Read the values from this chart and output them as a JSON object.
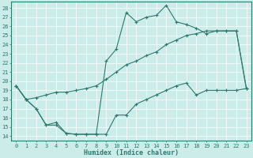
{
  "xlabel": "Humidex (Indice chaleur)",
  "bg_color": "#ccecea",
  "line_color": "#2d7a6e",
  "grid_color": "#ffffff",
  "xlim": [
    -0.5,
    23.5
  ],
  "ylim": [
    13.5,
    28.7
  ],
  "yticks": [
    14,
    15,
    16,
    17,
    18,
    19,
    20,
    21,
    22,
    23,
    24,
    25,
    26,
    27,
    28
  ],
  "xticks": [
    0,
    1,
    2,
    3,
    4,
    5,
    6,
    7,
    8,
    9,
    10,
    11,
    12,
    13,
    14,
    15,
    16,
    17,
    18,
    19,
    20,
    21,
    22,
    23
  ],
  "line1_x": [
    0,
    1,
    2,
    3,
    4,
    5,
    6,
    7,
    8,
    9,
    10,
    11,
    12,
    13,
    14,
    15,
    16,
    17,
    18,
    19,
    20,
    21,
    22,
    23
  ],
  "line1_y": [
    19.5,
    18.0,
    17.0,
    15.2,
    15.2,
    14.3,
    14.2,
    14.2,
    14.2,
    14.2,
    16.3,
    16.3,
    17.5,
    18.0,
    18.5,
    19.0,
    19.5,
    19.8,
    18.5,
    19.0,
    19.0,
    19.0,
    19.0,
    19.2
  ],
  "line2_x": [
    0,
    1,
    2,
    3,
    4,
    5,
    6,
    7,
    8,
    9,
    10,
    11,
    12,
    13,
    14,
    15,
    16,
    17,
    18,
    19,
    20,
    21,
    22,
    23
  ],
  "line2_y": [
    19.5,
    18.0,
    18.2,
    18.5,
    18.8,
    18.8,
    19.0,
    19.2,
    19.5,
    20.2,
    21.0,
    21.8,
    22.2,
    22.8,
    23.2,
    24.0,
    24.5,
    25.0,
    25.2,
    25.5,
    25.5,
    25.5,
    25.5,
    19.2
  ],
  "line3_x": [
    0,
    1,
    2,
    3,
    4,
    5,
    6,
    7,
    8,
    9,
    10,
    11,
    12,
    13,
    14,
    15,
    16,
    17,
    18,
    19,
    20,
    21,
    22,
    23
  ],
  "line3_y": [
    19.5,
    18.0,
    17.0,
    15.2,
    15.5,
    14.3,
    14.2,
    14.2,
    14.2,
    22.2,
    23.5,
    27.5,
    26.5,
    27.0,
    27.2,
    28.3,
    26.5,
    26.2,
    25.8,
    25.2,
    25.5,
    25.5,
    25.5,
    19.2
  ],
  "tick_fontsize": 5,
  "xlabel_fontsize": 6,
  "lw": 0.8,
  "markersize": 2.5,
  "markeredgewidth": 0.8
}
